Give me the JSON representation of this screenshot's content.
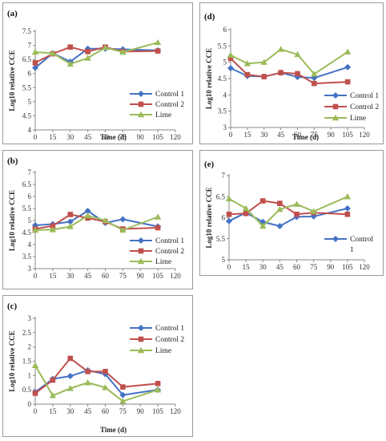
{
  "colors": {
    "control1": "#4472C4",
    "control2": "#C0504D",
    "lime": "#9BBB59"
  },
  "chart_data": [
    {
      "id": "a",
      "panel_label": "(a)",
      "type": "line",
      "xlabel": "Time (d)",
      "ylabel": "Log10 relative CCE",
      "xlim": [
        0,
        120
      ],
      "ylim": [
        4,
        7.5
      ],
      "x_ticks": [
        0,
        15,
        30,
        45,
        60,
        75,
        90,
        105,
        120
      ],
      "y_ticks": [
        "4",
        "4.5",
        "5",
        "5.5",
        "6",
        "6.5",
        "7",
        "7.5"
      ],
      "x": [
        0,
        15,
        30,
        45,
        60,
        75,
        105
      ],
      "series": [
        {
          "name": "Control 1",
          "key": "control1",
          "marker": "diamond",
          "values": [
            6.2,
            6.72,
            6.42,
            6.88,
            6.88,
            6.86,
            6.82
          ]
        },
        {
          "name": "Control 2",
          "key": "control2",
          "marker": "square",
          "values": [
            6.38,
            6.7,
            6.94,
            6.78,
            6.94,
            6.78,
            6.8
          ]
        },
        {
          "name": "Lime",
          "key": "lime",
          "marker": "triangle",
          "values": [
            6.76,
            6.72,
            6.34,
            6.55,
            6.92,
            6.76,
            7.1
          ]
        }
      ],
      "legend": "right",
      "legend_labels": [
        "Control 1",
        "Control 2",
        "Lime"
      ]
    },
    {
      "id": "b",
      "panel_label": "(b)",
      "type": "line",
      "xlabel": "Time (d)",
      "ylabel": "Log10 relative CCE",
      "xlim": [
        0,
        120
      ],
      "ylim": [
        3,
        7
      ],
      "x_ticks": [
        0,
        15,
        30,
        45,
        60,
        75,
        90,
        105,
        120
      ],
      "y_ticks": [
        "3",
        "3.5",
        "4",
        "4.5",
        "5",
        "5.5",
        "6",
        "6.5",
        "7"
      ],
      "x": [
        0,
        15,
        30,
        45,
        60,
        75,
        105
      ],
      "series": [
        {
          "name": "Control 1",
          "key": "control1",
          "marker": "diamond",
          "values": [
            4.8,
            4.85,
            4.95,
            5.4,
            4.9,
            5.05,
            4.75
          ]
        },
        {
          "name": "Control 2",
          "key": "control2",
          "marker": "square",
          "values": [
            4.65,
            4.78,
            5.25,
            5.1,
            4.95,
            4.65,
            4.7
          ]
        },
        {
          "name": "Lime",
          "key": "lime",
          "marker": "triangle",
          "values": [
            4.6,
            4.62,
            4.75,
            5.2,
            5.0,
            4.6,
            5.15
          ]
        }
      ],
      "legend": "right",
      "legend_labels": [
        "Control 1",
        "Control 2",
        "Lime"
      ]
    },
    {
      "id": "c",
      "panel_label": "(c)",
      "type": "line",
      "xlabel": "Time (d)",
      "ylabel": "Log10 relative CCE",
      "xlim": [
        0,
        120
      ],
      "ylim": [
        0,
        3
      ],
      "x_ticks": [
        0,
        15,
        30,
        45,
        60,
        75,
        90,
        105,
        120
      ],
      "y_ticks": [
        "0",
        "0.5",
        "1",
        "1.5",
        "2",
        "2.5",
        "3"
      ],
      "x": [
        0,
        15,
        30,
        45,
        60,
        75,
        105
      ],
      "series": [
        {
          "name": "Control 1",
          "key": "control1",
          "marker": "diamond",
          "values": [
            0.42,
            0.88,
            0.98,
            1.18,
            1.05,
            0.32,
            0.5
          ]
        },
        {
          "name": "Control 2",
          "key": "control2",
          "marker": "square",
          "values": [
            0.38,
            0.84,
            1.6,
            1.14,
            1.14,
            0.6,
            0.72
          ]
        },
        {
          "name": "Lime",
          "key": "lime",
          "marker": "triangle",
          "values": [
            1.35,
            0.3,
            0.55,
            0.75,
            0.58,
            0.1,
            0.5
          ]
        }
      ],
      "legend": "top-right",
      "legend_labels": [
        "Control 1",
        "Control 2",
        "Lime"
      ]
    },
    {
      "id": "d",
      "panel_label": "(d)",
      "type": "line",
      "xlabel": "Time (d)",
      "ylabel": "Log10 relative CCE",
      "xlim": [
        0,
        120
      ],
      "ylim": [
        3,
        6
      ],
      "x_ticks": [
        0,
        15,
        30,
        45,
        60,
        75,
        90,
        105,
        120
      ],
      "y_ticks": [
        "3",
        "3.5",
        "4",
        "4.5",
        "5",
        "5.5",
        "6"
      ],
      "x": [
        0,
        15,
        30,
        45,
        60,
        75,
        105
      ],
      "series": [
        {
          "name": "Control 1",
          "key": "control1",
          "marker": "diamond",
          "values": [
            4.82,
            4.58,
            4.56,
            4.68,
            4.55,
            4.52,
            4.85
          ]
        },
        {
          "name": "Control 2",
          "key": "control2",
          "marker": "square",
          "values": [
            5.12,
            4.62,
            4.56,
            4.68,
            4.65,
            4.35,
            4.4
          ]
        },
        {
          "name": "Lime",
          "key": "lime",
          "marker": "triangle",
          "values": [
            5.22,
            4.96,
            5.0,
            5.4,
            5.24,
            4.64,
            5.32
          ]
        }
      ],
      "legend": "bottom-right",
      "legend_labels": [
        "Control 1",
        "Control 2",
        "Lime"
      ]
    },
    {
      "id": "e",
      "panel_label": "(e)",
      "type": "line",
      "xlabel": "",
      "ylabel": "Log10 relative CCE",
      "xlim": [
        0,
        120
      ],
      "ylim": [
        5,
        7
      ],
      "x_ticks": [
        0,
        15,
        30,
        45,
        60,
        75,
        90,
        105,
        120
      ],
      "y_ticks": [
        "5",
        "5.5",
        "6",
        "6.5",
        "7"
      ],
      "x": [
        0,
        15,
        30,
        45,
        60,
        75,
        105
      ],
      "series": [
        {
          "name": "Control 1",
          "key": "control1",
          "marker": "diamond",
          "values": [
            5.92,
            6.12,
            5.9,
            5.8,
            6.02,
            6.03,
            6.22
          ]
        },
        {
          "name": "",
          "key": "control2",
          "marker": "square",
          "values": [
            6.08,
            6.1,
            6.4,
            6.34,
            6.08,
            6.12,
            6.08
          ]
        },
        {
          "name": "",
          "key": "lime",
          "marker": "triangle",
          "values": [
            6.45,
            6.22,
            5.8,
            6.2,
            6.32,
            6.15,
            6.5
          ]
        }
      ],
      "legend": "right",
      "legend_labels": [
        "Control",
        "1"
      ]
    }
  ]
}
